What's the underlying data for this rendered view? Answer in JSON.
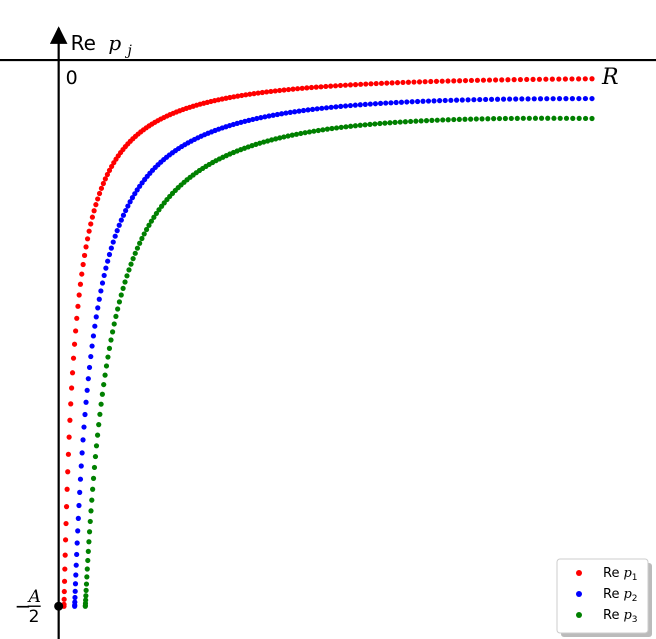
{
  "chart_data": {
    "type": "scatter",
    "title": "",
    "xlabel": "R",
    "ylabel_prefix": "Re",
    "ylabel_var": "p",
    "ylabel_sub": "j",
    "origin_label": "0",
    "ytick": {
      "value": -1.0,
      "num": "A",
      "den": "2",
      "sign": "−"
    },
    "xlim": [
      -0.11,
      1.12
    ],
    "ylim": [
      -1.06,
      0.11
    ],
    "grid": false,
    "legend_placement": "bottom-right",
    "series": [
      {
        "name_prefix": "Re",
        "name_var": "p",
        "name_sub": "1",
        "color": "#ff0000",
        "x_end": 1.0,
        "y_end": -0.013,
        "n_points": 150
      },
      {
        "name_prefix": "Re",
        "name_var": "p",
        "name_sub": "2",
        "color": "#0000ff",
        "x_end": 1.0,
        "y_end": -0.035,
        "n_points": 150
      },
      {
        "name_prefix": "Re",
        "name_var": "p",
        "name_sub": "3",
        "color": "#008000",
        "x_end": 1.0,
        "y_end": -0.057,
        "n_points": 150
      }
    ]
  }
}
